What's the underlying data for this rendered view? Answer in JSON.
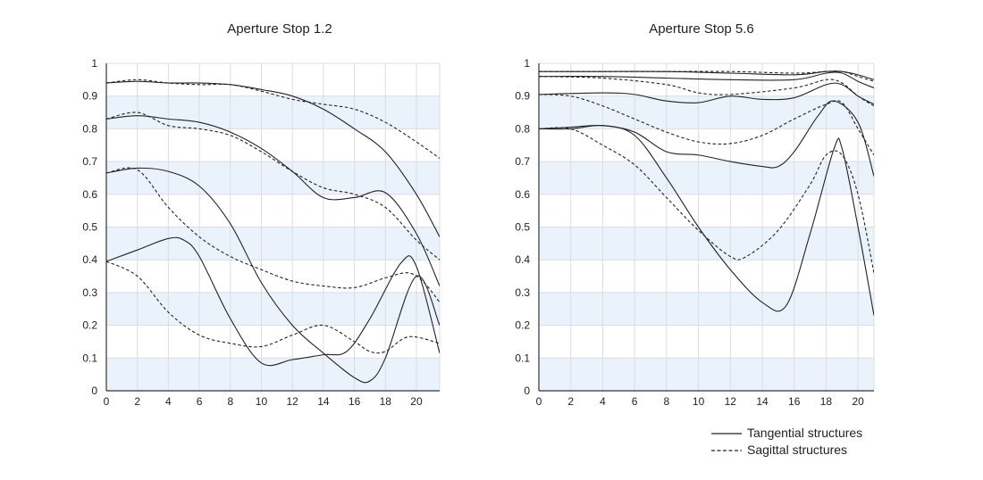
{
  "chart_data": [
    {
      "type": "line",
      "title": "Aperture Stop 1.2",
      "xlim": [
        0,
        21.5
      ],
      "ylim": [
        0,
        1
      ],
      "xticks": [
        0,
        2,
        4,
        6,
        8,
        10,
        12,
        14,
        16,
        18,
        20
      ],
      "yticks": [
        0,
        0.1,
        0.2,
        0.3,
        0.4,
        0.5,
        0.6,
        0.7,
        0.8,
        0.9,
        1
      ],
      "ytick_labels": [
        "0",
        "0.1",
        "0.2",
        "0.3",
        "0.4",
        "0.5",
        "0.6",
        "0.7",
        "0.8",
        "0.9",
        "1"
      ],
      "grid": true,
      "banded_rows": true,
      "series": [
        {
          "style": "solid",
          "points": [
            [
              0,
              0.94
            ],
            [
              2,
              0.945
            ],
            [
              4,
              0.94
            ],
            [
              6,
              0.94
            ],
            [
              8,
              0.935
            ],
            [
              10,
              0.92
            ],
            [
              12,
              0.9
            ],
            [
              14,
              0.86
            ],
            [
              16,
              0.8
            ],
            [
              18,
              0.73
            ],
            [
              20,
              0.6
            ],
            [
              21.5,
              0.47
            ]
          ]
        },
        {
          "style": "dashed",
          "points": [
            [
              0,
              0.94
            ],
            [
              2,
              0.95
            ],
            [
              4,
              0.94
            ],
            [
              6,
              0.935
            ],
            [
              8,
              0.935
            ],
            [
              10,
              0.915
            ],
            [
              12,
              0.89
            ],
            [
              14,
              0.875
            ],
            [
              16,
              0.86
            ],
            [
              18,
              0.82
            ],
            [
              20,
              0.76
            ],
            [
              21.5,
              0.71
            ]
          ]
        },
        {
          "style": "solid",
          "points": [
            [
              0,
              0.83
            ],
            [
              2,
              0.84
            ],
            [
              4,
              0.83
            ],
            [
              6,
              0.82
            ],
            [
              8,
              0.79
            ],
            [
              10,
              0.74
            ],
            [
              12,
              0.67
            ],
            [
              14,
              0.59
            ],
            [
              16,
              0.59
            ],
            [
              18,
              0.605
            ],
            [
              20,
              0.48
            ],
            [
              21.5,
              0.32
            ]
          ]
        },
        {
          "style": "dashed",
          "points": [
            [
              0,
              0.83
            ],
            [
              2,
              0.85
            ],
            [
              4,
              0.81
            ],
            [
              6,
              0.8
            ],
            [
              8,
              0.78
            ],
            [
              10,
              0.73
            ],
            [
              12,
              0.67
            ],
            [
              14,
              0.62
            ],
            [
              16,
              0.6
            ],
            [
              18,
              0.56
            ],
            [
              20,
              0.46
            ],
            [
              21.5,
              0.4
            ]
          ]
        },
        {
          "style": "solid",
          "points": [
            [
              0,
              0.665
            ],
            [
              2,
              0.68
            ],
            [
              4,
              0.67
            ],
            [
              6,
              0.625
            ],
            [
              8,
              0.51
            ],
            [
              10,
              0.33
            ],
            [
              12,
              0.2
            ],
            [
              14,
              0.115
            ],
            [
              16,
              0.04
            ],
            [
              17,
              0.03
            ],
            [
              18,
              0.1
            ],
            [
              20,
              0.35
            ],
            [
              21.5,
              0.2
            ]
          ]
        },
        {
          "style": "dashed",
          "points": [
            [
              0,
              0.665
            ],
            [
              2,
              0.675
            ],
            [
              4,
              0.56
            ],
            [
              6,
              0.47
            ],
            [
              8,
              0.41
            ],
            [
              10,
              0.37
            ],
            [
              12,
              0.335
            ],
            [
              14,
              0.32
            ],
            [
              16,
              0.315
            ],
            [
              18,
              0.345
            ],
            [
              19.5,
              0.36
            ],
            [
              20.5,
              0.33
            ],
            [
              21.5,
              0.27
            ]
          ]
        },
        {
          "style": "solid",
          "points": [
            [
              0,
              0.395
            ],
            [
              2,
              0.43
            ],
            [
              4,
              0.465
            ],
            [
              5,
              0.46
            ],
            [
              6,
              0.41
            ],
            [
              8,
              0.22
            ],
            [
              10,
              0.085
            ],
            [
              12,
              0.095
            ],
            [
              14,
              0.11
            ],
            [
              15.5,
              0.12
            ],
            [
              17,
              0.22
            ],
            [
              19,
              0.39
            ],
            [
              20,
              0.38
            ],
            [
              21.5,
              0.115
            ]
          ]
        },
        {
          "style": "dashed",
          "points": [
            [
              0,
              0.395
            ],
            [
              2,
              0.35
            ],
            [
              4,
              0.24
            ],
            [
              6,
              0.17
            ],
            [
              8,
              0.145
            ],
            [
              10,
              0.135
            ],
            [
              12,
              0.17
            ],
            [
              14,
              0.2
            ],
            [
              16,
              0.15
            ],
            [
              17,
              0.12
            ],
            [
              18,
              0.12
            ],
            [
              19.5,
              0.165
            ],
            [
              21.5,
              0.145
            ]
          ]
        }
      ]
    },
    {
      "type": "line",
      "title": "Aperture Stop 5.6",
      "xlim": [
        0,
        21
      ],
      "ylim": [
        0,
        1
      ],
      "xticks": [
        0,
        2,
        4,
        6,
        8,
        10,
        12,
        14,
        16,
        18,
        20
      ],
      "yticks": [
        0,
        0.1,
        0.2,
        0.3,
        0.4,
        0.5,
        0.6,
        0.7,
        0.8,
        0.9,
        1
      ],
      "ytick_labels": [
        "0",
        "0.1",
        "0.2",
        "0.3",
        "0.4",
        "0.5",
        "0.6",
        "0.7",
        "0.8",
        "0.9",
        "1"
      ],
      "grid": true,
      "banded_rows": true,
      "series": [
        {
          "style": "solid",
          "points": [
            [
              0,
              0.975
            ],
            [
              4,
              0.975
            ],
            [
              8,
              0.975
            ],
            [
              12,
              0.97
            ],
            [
              16,
              0.965
            ],
            [
              18,
              0.975
            ],
            [
              19,
              0.975
            ],
            [
              20,
              0.965
            ],
            [
              21,
              0.95
            ]
          ]
        },
        {
          "style": "dashed",
          "points": [
            [
              0,
              0.975
            ],
            [
              4,
              0.975
            ],
            [
              8,
              0.975
            ],
            [
              12,
              0.975
            ],
            [
              16,
              0.97
            ],
            [
              18,
              0.975
            ],
            [
              19,
              0.975
            ],
            [
              20,
              0.96
            ],
            [
              21,
              0.945
            ]
          ]
        },
        {
          "style": "solid",
          "points": [
            [
              0,
              0.96
            ],
            [
              4,
              0.96
            ],
            [
              8,
              0.955
            ],
            [
              12,
              0.95
            ],
            [
              16,
              0.95
            ],
            [
              18,
              0.97
            ],
            [
              19,
              0.97
            ],
            [
              20,
              0.945
            ],
            [
              21,
              0.925
            ]
          ]
        },
        {
          "style": "dashed",
          "points": [
            [
              0,
              0.96
            ],
            [
              4,
              0.955
            ],
            [
              8,
              0.935
            ],
            [
              10,
              0.91
            ],
            [
              12,
              0.905
            ],
            [
              16,
              0.925
            ],
            [
              18,
              0.95
            ],
            [
              19,
              0.94
            ],
            [
              20,
              0.9
            ],
            [
              21,
              0.87
            ]
          ]
        },
        {
          "style": "solid",
          "points": [
            [
              0,
              0.905
            ],
            [
              4,
              0.91
            ],
            [
              6,
              0.905
            ],
            [
              8,
              0.885
            ],
            [
              10,
              0.88
            ],
            [
              12,
              0.9
            ],
            [
              14,
              0.89
            ],
            [
              16,
              0.895
            ],
            [
              18,
              0.935
            ],
            [
              19,
              0.935
            ],
            [
              20,
              0.9
            ],
            [
              21,
              0.875
            ]
          ]
        },
        {
          "style": "dashed",
          "points": [
            [
              0,
              0.905
            ],
            [
              2,
              0.9
            ],
            [
              4,
              0.87
            ],
            [
              6,
              0.83
            ],
            [
              8,
              0.79
            ],
            [
              10,
              0.76
            ],
            [
              12,
              0.755
            ],
            [
              14,
              0.78
            ],
            [
              16,
              0.83
            ],
            [
              18,
              0.875
            ],
            [
              19,
              0.88
            ],
            [
              20,
              0.8
            ],
            [
              21,
              0.72
            ]
          ]
        },
        {
          "style": "solid",
          "points": [
            [
              0,
              0.8
            ],
            [
              2,
              0.805
            ],
            [
              4,
              0.81
            ],
            [
              6,
              0.79
            ],
            [
              8,
              0.73
            ],
            [
              10,
              0.72
            ],
            [
              12,
              0.7
            ],
            [
              14,
              0.685
            ],
            [
              15,
              0.685
            ],
            [
              16,
              0.73
            ],
            [
              17.5,
              0.84
            ],
            [
              18.5,
              0.885
            ],
            [
              20,
              0.82
            ],
            [
              21,
              0.655
            ]
          ]
        },
        {
          "style": "dashed",
          "points": [
            [
              0,
              0.8
            ],
            [
              2,
              0.8
            ],
            [
              4,
              0.75
            ],
            [
              6,
              0.69
            ],
            [
              8,
              0.59
            ],
            [
              10,
              0.49
            ],
            [
              12,
              0.41
            ],
            [
              13,
              0.41
            ],
            [
              15,
              0.49
            ],
            [
              17,
              0.63
            ],
            [
              18,
              0.72
            ],
            [
              19,
              0.72
            ],
            [
              20,
              0.6
            ],
            [
              21,
              0.36
            ]
          ]
        },
        {
          "style": "solid",
          "points": [
            [
              0,
              0.8
            ],
            [
              2,
              0.8
            ],
            [
              4,
              0.81
            ],
            [
              6,
              0.78
            ],
            [
              8,
              0.65
            ],
            [
              10,
              0.5
            ],
            [
              12,
              0.37
            ],
            [
              14,
              0.27
            ],
            [
              15.5,
              0.26
            ],
            [
              17,
              0.48
            ],
            [
              18.5,
              0.74
            ],
            [
              19,
              0.74
            ],
            [
              20,
              0.5
            ],
            [
              21,
              0.23
            ]
          ]
        }
      ]
    }
  ],
  "legend": {
    "placement": "bottom-right",
    "items": [
      {
        "label": "Tangential structures",
        "style": "solid"
      },
      {
        "label": "Sagittal structures",
        "style": "dashed"
      }
    ]
  },
  "colors": {
    "line": "#222222",
    "band": "#eaf3fc",
    "grid": "#d9dde2",
    "axis": "#333333"
  }
}
